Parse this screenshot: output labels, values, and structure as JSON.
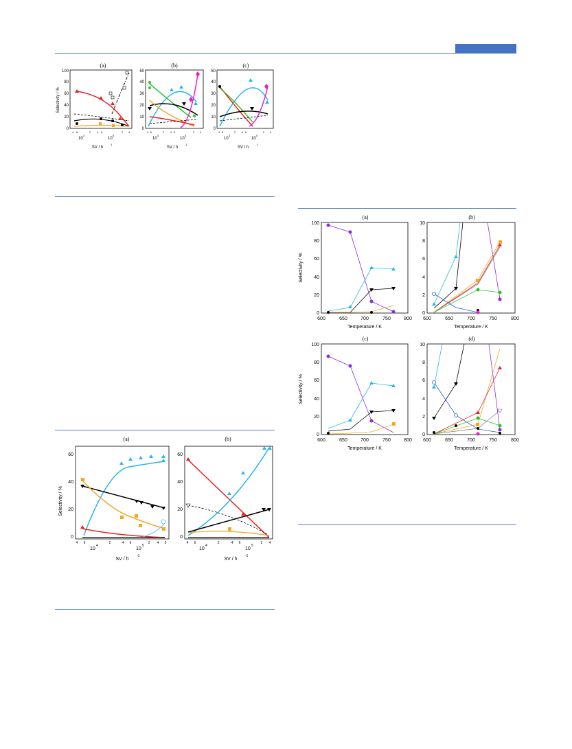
{
  "colors": {
    "rule": "#4f7bbf",
    "header_block": "#4472c4",
    "red": "#ee1c1c",
    "cyan": "#26b5ea",
    "orange": "#f5a623",
    "black": "#000000",
    "green": "#2fbf2f",
    "magenta": "#ea1ec8",
    "purple": "#8a2be2",
    "gray": "#7f7f7f",
    "blue": "#2a5bd7",
    "lightblue": "#63c8f2"
  },
  "figure1": {
    "panels": [
      {
        "label": "(a)",
        "ylabel": "Selectivity / %",
        "xlabel": "SV / h",
        "xexp": "-1",
        "yticks": [
          "0",
          "20",
          "40",
          "60",
          "80",
          "100"
        ],
        "xdecades": [
          "10",
          "10"
        ],
        "xdec_exp": [
          "4",
          "5"
        ],
        "xminor": [
          "4",
          "6",
          "2",
          "4",
          "6",
          "2",
          "4"
        ]
      },
      {
        "label": "(b)",
        "ylabel": "",
        "xlabel": "SV / h",
        "xexp": "-1",
        "yticks": [
          "0",
          "10",
          "20",
          "30",
          "40",
          "50"
        ],
        "xdecades": [
          "10",
          "10"
        ],
        "xdec_exp": [
          "4",
          "5"
        ],
        "xminor": [
          "4",
          "6",
          "2",
          "4",
          "6",
          "2",
          "4"
        ]
      },
      {
        "label": "(c)",
        "ylabel": "",
        "xlabel": "SV / h",
        "xexp": "-1",
        "yticks": [
          "0",
          "10",
          "20",
          "30",
          "40",
          "50"
        ],
        "xdecades": [
          "10",
          "10"
        ],
        "xdec_exp": [
          "4",
          "5"
        ],
        "xminor": [
          "4",
          "6",
          "2",
          "4",
          "6",
          "2",
          "4"
        ]
      }
    ]
  },
  "figure2": {
    "panels": [
      {
        "label": "(a)",
        "ylabel": "Selectivity / %",
        "xlabel": "SV / h",
        "xexp": "-1",
        "yticks": [
          "0",
          "20",
          "40",
          "60"
        ],
        "xdecades": [
          "10",
          "10"
        ],
        "xdec_exp": [
          "4",
          "5"
        ],
        "xminor": [
          "4",
          "6",
          "2",
          "4",
          "6",
          "2",
          "4",
          "6"
        ]
      },
      {
        "label": "(b)",
        "ylabel": "",
        "xlabel": "SV / h",
        "xexp": "-1",
        "yticks": [
          "0",
          "20",
          "40",
          "60"
        ],
        "xdecades": [
          "10",
          "10"
        ],
        "xdec_exp": [
          "4",
          "5"
        ],
        "xminor": [
          "4",
          "6",
          "2",
          "4",
          "6",
          "2",
          "4"
        ]
      }
    ]
  },
  "figure3": {
    "xlabel": "Temperature / K",
    "xticks": [
      "600",
      "650",
      "700",
      "750",
      "800"
    ],
    "panels": [
      {
        "label": "(a)",
        "ylabel": "Selectivity / %",
        "yticks": [
          "0",
          "20",
          "40",
          "60",
          "80",
          "100"
        ]
      },
      {
        "label": "(b)",
        "ylabel": "",
        "yticks": [
          "0",
          "2",
          "4",
          "6",
          "8",
          "10"
        ]
      },
      {
        "label": "(c)",
        "ylabel": "Selectivity / %",
        "yticks": [
          "0",
          "20",
          "40",
          "60",
          "80",
          "100"
        ]
      },
      {
        "label": "(d)",
        "ylabel": "",
        "yticks": [
          "0",
          "2",
          "4",
          "6",
          "8",
          "10"
        ]
      }
    ]
  }
}
